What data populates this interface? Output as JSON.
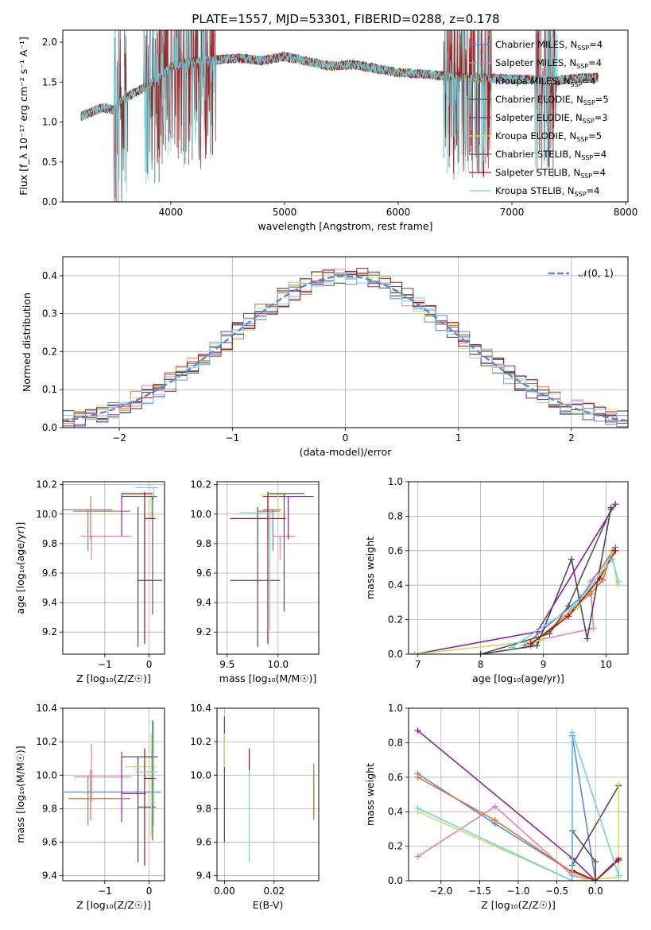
{
  "title": "PLATE=1557, MJD=53301, FIBERID=0288, z=0.178",
  "colors": {
    "Chabrier MILES": "#5b8bd6",
    "Salpeter MILES": "#e77fb5",
    "Kroupa MILES": "#e0732b",
    "Chabrier ELODIE": "#4a4a4a",
    "Salpeter ELODIE": "#8e1ea8",
    "Kroupa ELODIE": "#c4e35c",
    "Chabrier STELIB": "#555555",
    "Salpeter STELIB": "#b01010",
    "Kroupa STELIB": "#6fd3dc"
  },
  "chart_data": [
    {
      "type": "line",
      "panel": "spectrum",
      "xlabel": "wavelength [Angstrom, rest frame]",
      "ylabel": "Flux [f_λ 10⁻¹⁷ erg cm⁻² s⁻¹ A⁻¹]",
      "xlim": [
        3050,
        8020
      ],
      "ylim": [
        0,
        2.15
      ],
      "xticks": [
        4000,
        5000,
        6000,
        7000,
        8000
      ],
      "yticks": [
        0.0,
        0.5,
        1.0,
        1.5,
        2.0
      ],
      "continuum": {
        "x": [
          3220,
          3300,
          3400,
          3500,
          3600,
          3700,
          3800,
          3900,
          4000,
          4200,
          4400,
          4600,
          4800,
          5000,
          5200,
          5400,
          5600,
          5800,
          6000,
          6200,
          6400,
          6600,
          6800,
          7000,
          7200,
          7400,
          7600,
          7750
        ],
        "y": [
          1.08,
          1.12,
          1.18,
          1.15,
          1.3,
          1.38,
          1.45,
          1.55,
          1.7,
          1.75,
          1.78,
          1.8,
          1.77,
          1.82,
          1.76,
          1.7,
          1.72,
          1.67,
          1.62,
          1.6,
          1.58,
          1.56,
          1.55,
          1.54,
          1.53,
          1.52,
          1.55,
          1.56
        ]
      },
      "legend": [
        {
          "name": "Chabrier MILES, N",
          "sub": "SSP",
          "val": "=4"
        },
        {
          "name": "Salpeter MILES, N",
          "sub": "SSP",
          "val": "=4"
        },
        {
          "name": "Kroupa MILES, N",
          "sub": "SSP",
          "val": "=4"
        },
        {
          "name": "Chabrier ELODIE, N",
          "sub": "SSP",
          "val": "=5"
        },
        {
          "name": "Salpeter ELODIE, N",
          "sub": "SSP",
          "val": "=3"
        },
        {
          "name": "Kroupa ELODIE, N",
          "sub": "SSP",
          "val": "=5"
        },
        {
          "name": "Chabrier STELIB, N",
          "sub": "SSP",
          "val": "=4"
        },
        {
          "name": "Salpeter STELIB, N",
          "sub": "SSP",
          "val": "=4"
        },
        {
          "name": "Kroupa STELIB, N",
          "sub": "SSP",
          "val": "=4"
        }
      ],
      "legend_placement": "top-right"
    },
    {
      "type": "histogram",
      "panel": "residuals",
      "xlabel": "(data-model)/error",
      "ylabel": "Normed distribution",
      "xlim": [
        -2.5,
        2.5
      ],
      "ylim": [
        0,
        0.45
      ],
      "xticks": [
        -2,
        -1,
        0,
        1,
        2
      ],
      "yticks": [
        0.0,
        0.1,
        0.2,
        0.3,
        0.4
      ],
      "grid": true,
      "bin_width": 0.1,
      "reference": {
        "name": "𝒩(0, 1)",
        "mean": 0,
        "sigma": 1
      }
    },
    {
      "type": "scatter",
      "panel": "age-vs-Z",
      "xlabel": "Z [log₁₀(Z/Z☉)]",
      "ylabel": "age  [log₁₀(age/yr)]",
      "xlim": [
        -1.95,
        0.35
      ],
      "ylim": [
        9.05,
        10.22
      ],
      "xticks": [
        -1,
        0
      ],
      "yticks": [
        9.2,
        9.4,
        9.6,
        9.8,
        10.0,
        10.2
      ],
      "points": [
        {
          "s": "Chabrier MILES",
          "x": -1.38,
          "y": 10.03,
          "xe": [
            0.55,
            0.55
          ],
          "ye": [
            0.28,
            0.0
          ]
        },
        {
          "s": "Salpeter MILES",
          "x": -1.3,
          "y": 9.85,
          "xe": [
            0.25,
            0.9
          ],
          "ye": [
            0.16,
            0.0
          ]
        },
        {
          "s": "Kroupa MILES",
          "x": -1.32,
          "y": 10.02,
          "xe": [
            0.4,
            0.9
          ],
          "ye": [
            0.19,
            0.1
          ]
        },
        {
          "s": "Chabrier ELODIE",
          "x": -0.25,
          "y": 9.55,
          "xe": [
            0.0,
            0.55
          ],
          "ye": [
            0.45,
            0.5
          ]
        },
        {
          "s": "Salpeter ELODIE",
          "x": -0.62,
          "y": 10.14,
          "xe": [
            0.0,
            0.7
          ],
          "ye": [
            0.29,
            0.0
          ]
        },
        {
          "s": "Kroupa ELODIE",
          "x": 0.05,
          "y": 10.13,
          "xe": [
            0.7,
            0.1
          ],
          "ye": [
            0.17,
            0.0
          ]
        },
        {
          "s": "Chabrier STELIB",
          "x": 0.08,
          "y": 10.12,
          "xe": [
            0.7,
            0.1
          ],
          "ye": [
            0.8,
            0.0
          ]
        },
        {
          "s": "Salpeter STELIB",
          "x": -0.1,
          "y": 9.97,
          "xe": [
            0.0,
            0.25
          ],
          "ye": [
            0.85,
            0.18
          ]
        },
        {
          "s": "Kroupa STELIB",
          "x": 0.1,
          "y": 10.18,
          "xe": [
            0.4,
            0.1
          ],
          "ye": [
            0.08,
            0.0
          ]
        }
      ]
    },
    {
      "type": "scatter",
      "panel": "age-vs-mass",
      "xlabel": "mass [log₁₀(M/M☉)]",
      "ylabel": "",
      "xlim": [
        9.4,
        10.4
      ],
      "ylim": [
        9.05,
        10.22
      ],
      "xticks": [
        9.5,
        10.0
      ],
      "yticks": [
        9.2,
        9.4,
        9.6,
        9.8,
        10.0,
        10.2
      ],
      "points": [
        {
          "s": "Chabrier MILES",
          "x": 9.95,
          "y": 10.03,
          "xe": [
            0.1,
            0.08
          ],
          "ye": [
            0.28,
            0.0
          ]
        },
        {
          "s": "Salpeter MILES",
          "x": 10.02,
          "y": 9.85,
          "xe": [
            0.07,
            0.15
          ],
          "ye": [
            0.16,
            0.0
          ]
        },
        {
          "s": "Kroupa MILES",
          "x": 9.9,
          "y": 10.02,
          "xe": [
            0.1,
            0.12
          ],
          "ye": [
            0.19,
            0.1
          ]
        },
        {
          "s": "Chabrier ELODIE",
          "x": 9.8,
          "y": 9.55,
          "xe": [
            0.27,
            0.22
          ],
          "ye": [
            0.45,
            0.5
          ]
        },
        {
          "s": "Salpeter ELODIE",
          "x": 10.1,
          "y": 10.12,
          "xe": [
            0.25,
            0.25
          ],
          "ye": [
            0.29,
            0.0
          ]
        },
        {
          "s": "Kroupa ELODIE",
          "x": 10.0,
          "y": 10.13,
          "xe": [
            0.18,
            0.07
          ],
          "ye": [
            0.17,
            0.0
          ]
        },
        {
          "s": "Chabrier STELIB",
          "x": 10.06,
          "y": 10.14,
          "xe": [
            0.15,
            0.2
          ],
          "ye": [
            0.8,
            0.0
          ]
        },
        {
          "s": "Salpeter STELIB",
          "x": 9.9,
          "y": 9.97,
          "xe": [
            0.37,
            0.18
          ],
          "ye": [
            0.85,
            0.18
          ]
        },
        {
          "s": "Kroupa STELIB",
          "x": 9.92,
          "y": 10.01,
          "xe": [
            0.29,
            0.04
          ],
          "ye": [
            0.8,
            0.0
          ]
        }
      ]
    },
    {
      "type": "line",
      "panel": "massweight-vs-age",
      "xlabel": "age  [log₁₀(age/yr)]",
      "ylabel": "mass weight",
      "xlim": [
        6.85,
        10.35
      ],
      "ylim": [
        0,
        1.0
      ],
      "xticks": [
        7,
        8,
        9,
        10
      ],
      "yticks": [
        0.0,
        0.2,
        0.4,
        0.6,
        0.8,
        1.0
      ],
      "grid": true,
      "series": [
        {
          "name": "Chabrier MILES",
          "x": [
            8.7,
            9.6,
            10.15
          ],
          "y": [
            0.05,
            0.33,
            0.62
          ]
        },
        {
          "name": "Salpeter MILES",
          "x": [
            8.9,
            9.8,
            9.75,
            10.1
          ],
          "y": [
            0.08,
            0.15,
            0.42,
            0.58
          ]
        },
        {
          "name": "Kroupa MILES",
          "x": [
            8.8,
            9.75,
            9.95,
            10.1
          ],
          "y": [
            0.05,
            0.35,
            0.43,
            0.6
          ]
        },
        {
          "name": "Chabrier ELODIE",
          "x": [
            8.0,
            8.9,
            9.45,
            9.7,
            10.08
          ],
          "y": [
            0.0,
            0.05,
            0.55,
            0.09,
            0.85
          ]
        },
        {
          "name": "Salpeter ELODIE",
          "x": [
            6.95,
            8.9,
            10.15
          ],
          "y": [
            0.0,
            0.13,
            0.87
          ]
        },
        {
          "name": "Kroupa ELODIE",
          "x": [
            6.95,
            8.95,
            9.55,
            10.1,
            10.18
          ],
          "y": [
            0.0,
            0.08,
            0.27,
            0.58,
            0.4
          ]
        },
        {
          "name": "Chabrier STELIB",
          "x": [
            8.0,
            9.1,
            9.4,
            10.08
          ],
          "y": [
            0.0,
            0.12,
            0.28,
            0.84
          ]
        },
        {
          "name": "Salpeter STELIB",
          "x": [
            8.8,
            9.4,
            9.9,
            10.15
          ],
          "y": [
            0.06,
            0.22,
            0.44,
            0.6
          ]
        },
        {
          "name": "Kroupa STELIB",
          "x": [
            8.5,
            9.5,
            10.1,
            10.2
          ],
          "y": [
            0.04,
            0.28,
            0.55,
            0.42
          ]
        }
      ]
    },
    {
      "type": "scatter",
      "panel": "mass-vs-Z",
      "xlabel": "Z [log₁₀(Z/Z☉)]",
      "ylabel": "mass [log₁₀(M/M☉)]",
      "xlim": [
        -1.95,
        0.35
      ],
      "ylim": [
        9.37,
        10.4
      ],
      "xticks": [
        -1,
        0
      ],
      "yticks": [
        9.4,
        9.6,
        9.8,
        10.0,
        10.2,
        10.4
      ],
      "points": [
        {
          "s": "Chabrier MILES",
          "x": -1.38,
          "y": 9.9,
          "xe": [
            0.55,
            1.65
          ],
          "ye": [
            0.2,
            0.1
          ]
        },
        {
          "s": "Salpeter MILES",
          "x": -1.3,
          "y": 9.99,
          "xe": [
            0.4,
            0.9
          ],
          "ye": [
            0.15,
            0.2
          ]
        },
        {
          "s": "Kroupa MILES",
          "x": -1.32,
          "y": 9.86,
          "xe": [
            0.5,
            0.9
          ],
          "ye": [
            0.13,
            0.17
          ]
        },
        {
          "s": "Chabrier ELODIE",
          "x": -0.25,
          "y": 9.81,
          "xe": [
            0.0,
            0.4
          ],
          "ye": [
            0.33,
            0.3
          ]
        },
        {
          "s": "Salpeter ELODIE",
          "x": -0.62,
          "y": 9.89,
          "xe": [
            0.0,
            0.55
          ],
          "ye": [
            0.17,
            0.25
          ]
        },
        {
          "s": "Kroupa ELODIE",
          "x": 0.05,
          "y": 10.05,
          "xe": [
            0.6,
            0.12
          ],
          "ye": [
            0.42,
            0.2
          ]
        },
        {
          "s": "Chabrier STELIB",
          "x": 0.08,
          "y": 10.11,
          "xe": [
            0.7,
            0.12
          ],
          "ye": [
            0.5,
            0.22
          ]
        },
        {
          "s": "Salpeter STELIB",
          "x": -0.1,
          "y": 9.98,
          "xe": [
            0.0,
            0.25
          ],
          "ye": [
            0.52,
            0.18
          ]
        },
        {
          "s": "Kroupa STELIB",
          "x": 0.1,
          "y": 10.02,
          "xe": [
            0.4,
            0.1
          ],
          "ye": [
            0.32,
            0.3
          ]
        }
      ]
    },
    {
      "type": "scatter",
      "panel": "mass-vs-EBV",
      "xlabel": "E(B-V)",
      "ylabel": "",
      "xlim": [
        -0.003,
        0.038
      ],
      "ylim": [
        9.37,
        10.4
      ],
      "xticks": [
        0.0,
        0.02
      ],
      "yticks": [
        9.4,
        9.6,
        9.8,
        10.0,
        10.2,
        10.4
      ],
      "points": [
        {
          "s": "Chabrier MILES",
          "x": 0.036,
          "y": 9.9,
          "xe": [
            0,
            0
          ],
          "ye": [
            0.15,
            0.17
          ]
        },
        {
          "s": "Kroupa MILES",
          "x": 0.036,
          "y": 9.86,
          "xe": [
            0,
            0
          ],
          "ye": [
            0.13,
            0.17
          ]
        },
        {
          "s": "Salpeter ELODIE",
          "x": 0.0,
          "y": 10.2,
          "xe": [
            0,
            0
          ],
          "ye": [
            0.12,
            0.15
          ]
        },
        {
          "s": "Chabrier ELODIE",
          "x": 0.0,
          "y": 9.86,
          "xe": [
            0,
            0
          ],
          "ye": [
            0.26,
            0.26
          ]
        },
        {
          "s": "Kroupa ELODIE",
          "x": 0.0,
          "y": 10.15,
          "xe": [
            0,
            0
          ],
          "ye": [
            0.1,
            0.1
          ]
        },
        {
          "s": "Salpeter STELIB",
          "x": 0.01,
          "y": 10.08,
          "xe": [
            0,
            0
          ],
          "ye": [
            0.08,
            0.08
          ]
        },
        {
          "s": "Kroupa STELIB",
          "x": 0.01,
          "y": 9.75,
          "xe": [
            0,
            0
          ],
          "ye": [
            0.27,
            0.28
          ]
        }
      ]
    },
    {
      "type": "line",
      "panel": "massweight-vs-Z",
      "xlabel": "Z [log₁₀(Z/Z☉)]",
      "ylabel": "mass weight",
      "xlim": [
        -2.42,
        0.42
      ],
      "ylim": [
        0,
        1.0
      ],
      "xticks": [
        -2.0,
        -1.5,
        -1.0,
        -0.5,
        0.0
      ],
      "yticks": [
        0.0,
        0.2,
        0.4,
        0.6,
        0.8,
        1.0
      ],
      "grid": true,
      "series": [
        {
          "name": "Chabrier MILES",
          "x": [
            -2.3,
            -1.3,
            -0.3,
            -0.3,
            0.0
          ],
          "y": [
            0.62,
            0.33,
            0.05,
            0.84,
            0.0
          ]
        },
        {
          "name": "Salpeter MILES",
          "x": [
            -2.3,
            -1.3,
            -0.3,
            0.0,
            0.3
          ],
          "y": [
            0.14,
            0.43,
            0.03,
            0.0,
            0.0
          ]
        },
        {
          "name": "Kroupa MILES",
          "x": [
            -2.3,
            -1.3,
            -0.3,
            0.0
          ],
          "y": [
            0.6,
            0.35,
            0.05,
            0.0
          ]
        },
        {
          "name": "Chabrier ELODIE",
          "x": [
            -0.3,
            0.3
          ],
          "y": [
            0.09,
            0.55
          ]
        },
        {
          "name": "Salpeter ELODIE",
          "x": [
            -2.3,
            -0.3,
            0.0,
            0.3
          ],
          "y": [
            0.87,
            0.13,
            0.0,
            0.13
          ]
        },
        {
          "name": "Kroupa ELODIE",
          "x": [
            -2.3,
            -0.3,
            0.3,
            0.3
          ],
          "y": [
            0.4,
            0.0,
            0.02,
            0.56
          ]
        },
        {
          "name": "Chabrier STELIB",
          "x": [
            -0.3,
            -0.3,
            0.0,
            0.0
          ],
          "y": [
            0.0,
            0.29,
            0.11,
            0.0
          ]
        },
        {
          "name": "Salpeter STELIB",
          "x": [
            -0.3,
            0.0,
            0.3
          ],
          "y": [
            0.06,
            0.0,
            0.12
          ]
        },
        {
          "name": "Kroupa STELIB",
          "x": [
            -2.3,
            -0.3,
            -0.3,
            0.3
          ],
          "y": [
            0.42,
            0.0,
            0.86,
            0.03
          ]
        }
      ]
    }
  ]
}
